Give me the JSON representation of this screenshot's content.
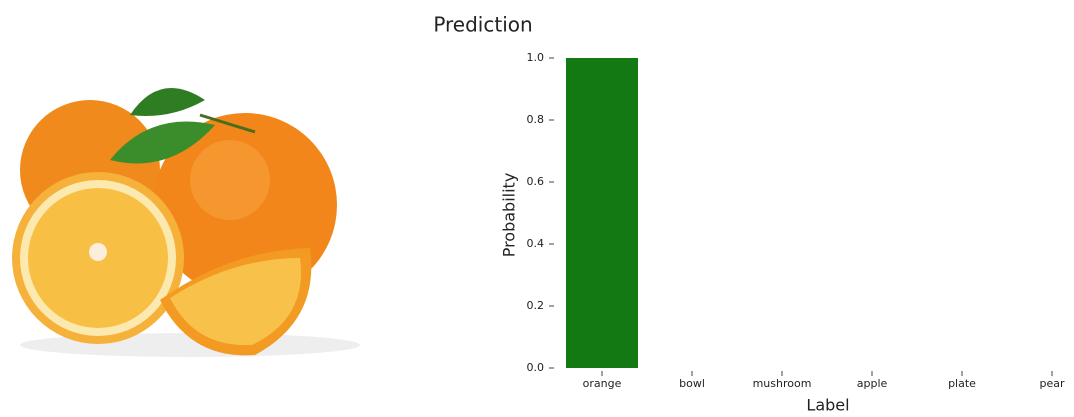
{
  "chart_data": {
    "type": "bar",
    "title": "Prediction",
    "categories": [
      "orange",
      "bowl",
      "mushroom",
      "apple",
      "plate",
      "pear"
    ],
    "values": [
      1.0,
      0,
      0,
      0,
      0,
      0
    ],
    "color": "#137a13",
    "xlabel": "Label",
    "ylabel": "Probability",
    "ylim": [
      0,
      1
    ],
    "yticks": [
      {
        "value": 0,
        "label": "0.0"
      },
      0.2,
      0.4,
      0.6,
      0.8,
      {
        "value": 1,
        "label": "1.0"
      }
    ],
    "grid": false
  }
}
